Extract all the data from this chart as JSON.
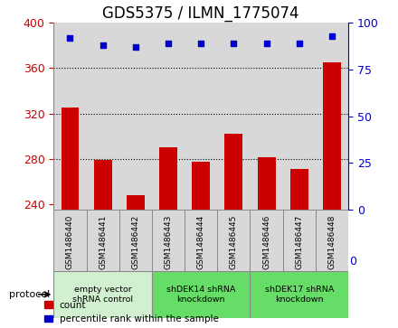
{
  "title": "GDS5375 / ILMN_1775074",
  "samples": [
    "GSM1486440",
    "GSM1486441",
    "GSM1486442",
    "GSM1486443",
    "GSM1486444",
    "GSM1486445",
    "GSM1486446",
    "GSM1486447",
    "GSM1486448"
  ],
  "count_values": [
    325,
    279,
    248,
    290,
    277,
    302,
    281,
    271,
    365
  ],
  "percentile_values": [
    92,
    88,
    87,
    89,
    89,
    89,
    89,
    89,
    93
  ],
  "ylim_left": [
    235,
    400
  ],
  "ylim_right": [
    0,
    100
  ],
  "yticks_left": [
    240,
    280,
    320,
    360,
    400
  ],
  "yticks_right": [
    0,
    25,
    50,
    75,
    100
  ],
  "grid_values": [
    280,
    320,
    360
  ],
  "protocol_groups": [
    {
      "label": "empty vector\nshRNA control",
      "start": 0,
      "end": 3,
      "color": "#d0f0d0"
    },
    {
      "label": "shDEK14 shRNA\nknockdown",
      "start": 3,
      "end": 6,
      "color": "#66dd66"
    },
    {
      "label": "shDEK17 shRNA\nknockdown",
      "start": 6,
      "end": 9,
      "color": "#66dd66"
    }
  ],
  "bar_color": "#cc0000",
  "dot_color": "#0000cc",
  "bar_width": 0.55,
  "tick_fontsize": 9,
  "label_col_bg": "#d8d8d8",
  "plot_bg_color": "#ffffff",
  "title_fontsize": 12,
  "protocol_label": "protocol",
  "legend_count_label": "count",
  "legend_percentile_label": "percentile rank within the sample"
}
